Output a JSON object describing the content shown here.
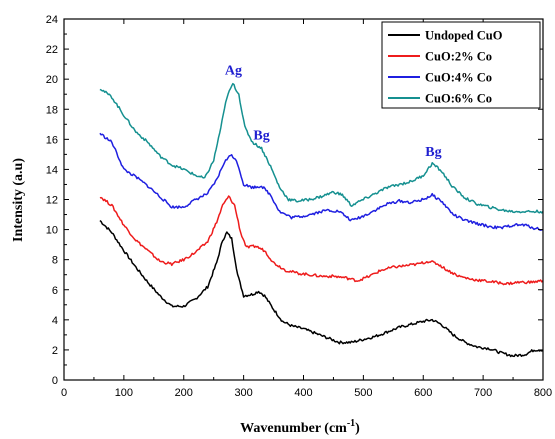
{
  "chart_data": {
    "type": "line",
    "xlabel": "Wavenumber (cm",
    "xlabel_sup": "-1",
    "xlabel_tail": ")",
    "ylabel": "Intensity (a.u)",
    "xlim": [
      0,
      800
    ],
    "ylim": [
      0,
      24
    ],
    "x_ticks": [
      "0",
      "100",
      "200",
      "300",
      "400",
      "500",
      "600",
      "700",
      "800"
    ],
    "y_ticks": [
      "0",
      "2",
      "4",
      "6",
      "8",
      "10",
      "12",
      "14",
      "16",
      "18",
      "20",
      "22",
      "24"
    ],
    "grid": false,
    "legend_position": "top-right",
    "series": [
      {
        "name": "Undoped CuO",
        "color": "#000000",
        "points": [
          [
            60,
            10.6
          ],
          [
            80,
            9.8
          ],
          [
            100,
            8.6
          ],
          [
            120,
            7.5
          ],
          [
            140,
            6.5
          ],
          [
            160,
            5.6
          ],
          [
            180,
            4.9
          ],
          [
            200,
            4.9
          ],
          [
            220,
            5.4
          ],
          [
            240,
            6.2
          ],
          [
            255,
            7.8
          ],
          [
            265,
            9.3
          ],
          [
            272,
            9.8
          ],
          [
            280,
            9.4
          ],
          [
            290,
            7.0
          ],
          [
            300,
            5.6
          ],
          [
            315,
            5.7
          ],
          [
            325,
            5.9
          ],
          [
            335,
            5.6
          ],
          [
            350,
            4.7
          ],
          [
            365,
            3.9
          ],
          [
            380,
            3.6
          ],
          [
            400,
            3.4
          ],
          [
            420,
            3.1
          ],
          [
            440,
            2.8
          ],
          [
            460,
            2.5
          ],
          [
            480,
            2.5
          ],
          [
            500,
            2.7
          ],
          [
            520,
            2.9
          ],
          [
            540,
            3.2
          ],
          [
            560,
            3.5
          ],
          [
            580,
            3.7
          ],
          [
            600,
            3.9
          ],
          [
            615,
            4.0
          ],
          [
            630,
            3.7
          ],
          [
            650,
            3.0
          ],
          [
            670,
            2.5
          ],
          [
            690,
            2.2
          ],
          [
            710,
            2.1
          ],
          [
            730,
            1.8
          ],
          [
            750,
            1.6
          ],
          [
            770,
            1.7
          ],
          [
            785,
            2.0
          ],
          [
            800,
            2.0
          ]
        ]
      },
      {
        "name": "CuO:2% Co",
        "color": "#ee1c1c",
        "points": [
          [
            60,
            12.2
          ],
          [
            80,
            11.6
          ],
          [
            100,
            10.3
          ],
          [
            120,
            9.3
          ],
          [
            140,
            8.6
          ],
          [
            160,
            7.9
          ],
          [
            180,
            7.7
          ],
          [
            200,
            8.0
          ],
          [
            220,
            8.5
          ],
          [
            240,
            9.2
          ],
          [
            255,
            10.5
          ],
          [
            265,
            11.6
          ],
          [
            275,
            12.2
          ],
          [
            285,
            11.6
          ],
          [
            295,
            9.8
          ],
          [
            305,
            8.8
          ],
          [
            320,
            8.9
          ],
          [
            335,
            8.6
          ],
          [
            350,
            7.8
          ],
          [
            370,
            7.3
          ],
          [
            390,
            7.1
          ],
          [
            410,
            7.0
          ],
          [
            430,
            6.9
          ],
          [
            450,
            6.9
          ],
          [
            470,
            6.8
          ],
          [
            490,
            6.6
          ],
          [
            510,
            6.9
          ],
          [
            530,
            7.3
          ],
          [
            550,
            7.5
          ],
          [
            570,
            7.6
          ],
          [
            590,
            7.7
          ],
          [
            610,
            7.9
          ],
          [
            625,
            7.7
          ],
          [
            640,
            7.3
          ],
          [
            660,
            6.9
          ],
          [
            680,
            6.7
          ],
          [
            700,
            6.6
          ],
          [
            720,
            6.5
          ],
          [
            740,
            6.4
          ],
          [
            760,
            6.5
          ],
          [
            780,
            6.5
          ],
          [
            800,
            6.6
          ]
        ]
      },
      {
        "name": "CuO:4% Co",
        "color": "#1f1fe0",
        "points": [
          [
            60,
            16.4
          ],
          [
            80,
            15.8
          ],
          [
            100,
            14.0
          ],
          [
            120,
            13.5
          ],
          [
            140,
            12.9
          ],
          [
            160,
            12.2
          ],
          [
            180,
            11.5
          ],
          [
            200,
            11.5
          ],
          [
            220,
            12.0
          ],
          [
            240,
            12.4
          ],
          [
            255,
            13.3
          ],
          [
            268,
            14.5
          ],
          [
            280,
            15.0
          ],
          [
            290,
            14.4
          ],
          [
            300,
            13.0
          ],
          [
            315,
            12.8
          ],
          [
            330,
            12.9
          ],
          [
            345,
            12.3
          ],
          [
            360,
            11.2
          ],
          [
            380,
            10.8
          ],
          [
            400,
            10.9
          ],
          [
            420,
            11.1
          ],
          [
            440,
            11.3
          ],
          [
            460,
            11.2
          ],
          [
            480,
            10.6
          ],
          [
            500,
            10.9
          ],
          [
            520,
            11.3
          ],
          [
            540,
            11.7
          ],
          [
            560,
            11.9
          ],
          [
            580,
            11.8
          ],
          [
            600,
            12.0
          ],
          [
            615,
            12.3
          ],
          [
            630,
            11.9
          ],
          [
            650,
            11.0
          ],
          [
            670,
            10.6
          ],
          [
            690,
            10.4
          ],
          [
            710,
            10.2
          ],
          [
            730,
            10.1
          ],
          [
            750,
            10.3
          ],
          [
            770,
            10.3
          ],
          [
            785,
            10.1
          ],
          [
            800,
            10.0
          ]
        ]
      },
      {
        "name": "CuO:6% Co",
        "color": "#159090",
        "points": [
          [
            60,
            19.4
          ],
          [
            80,
            18.8
          ],
          [
            100,
            17.6
          ],
          [
            120,
            16.5
          ],
          [
            140,
            15.8
          ],
          [
            160,
            14.9
          ],
          [
            180,
            14.3
          ],
          [
            200,
            14.0
          ],
          [
            220,
            13.6
          ],
          [
            235,
            13.4
          ],
          [
            250,
            14.6
          ],
          [
            262,
            16.8
          ],
          [
            272,
            18.8
          ],
          [
            282,
            19.7
          ],
          [
            292,
            19.0
          ],
          [
            302,
            16.8
          ],
          [
            315,
            15.8
          ],
          [
            330,
            15.4
          ],
          [
            345,
            14.2
          ],
          [
            360,
            12.8
          ],
          [
            375,
            12.0
          ],
          [
            390,
            11.9
          ],
          [
            410,
            12.0
          ],
          [
            430,
            12.2
          ],
          [
            450,
            12.5
          ],
          [
            465,
            12.3
          ],
          [
            480,
            11.6
          ],
          [
            500,
            12.0
          ],
          [
            520,
            12.4
          ],
          [
            540,
            12.8
          ],
          [
            560,
            13.0
          ],
          [
            580,
            13.2
          ],
          [
            600,
            13.6
          ],
          [
            615,
            14.4
          ],
          [
            630,
            13.9
          ],
          [
            650,
            12.8
          ],
          [
            670,
            12.1
          ],
          [
            690,
            11.7
          ],
          [
            710,
            11.5
          ],
          [
            730,
            11.3
          ],
          [
            750,
            11.2
          ],
          [
            770,
            11.2
          ],
          [
            790,
            11.2
          ],
          [
            800,
            11.2
          ]
        ]
      }
    ],
    "annotations": [
      {
        "text": "Ag",
        "x": 283,
        "y": 20.3
      },
      {
        "text": "Bg",
        "x": 330,
        "y": 16.0
      },
      {
        "text": "Bg",
        "x": 617,
        "y": 14.9
      }
    ]
  }
}
